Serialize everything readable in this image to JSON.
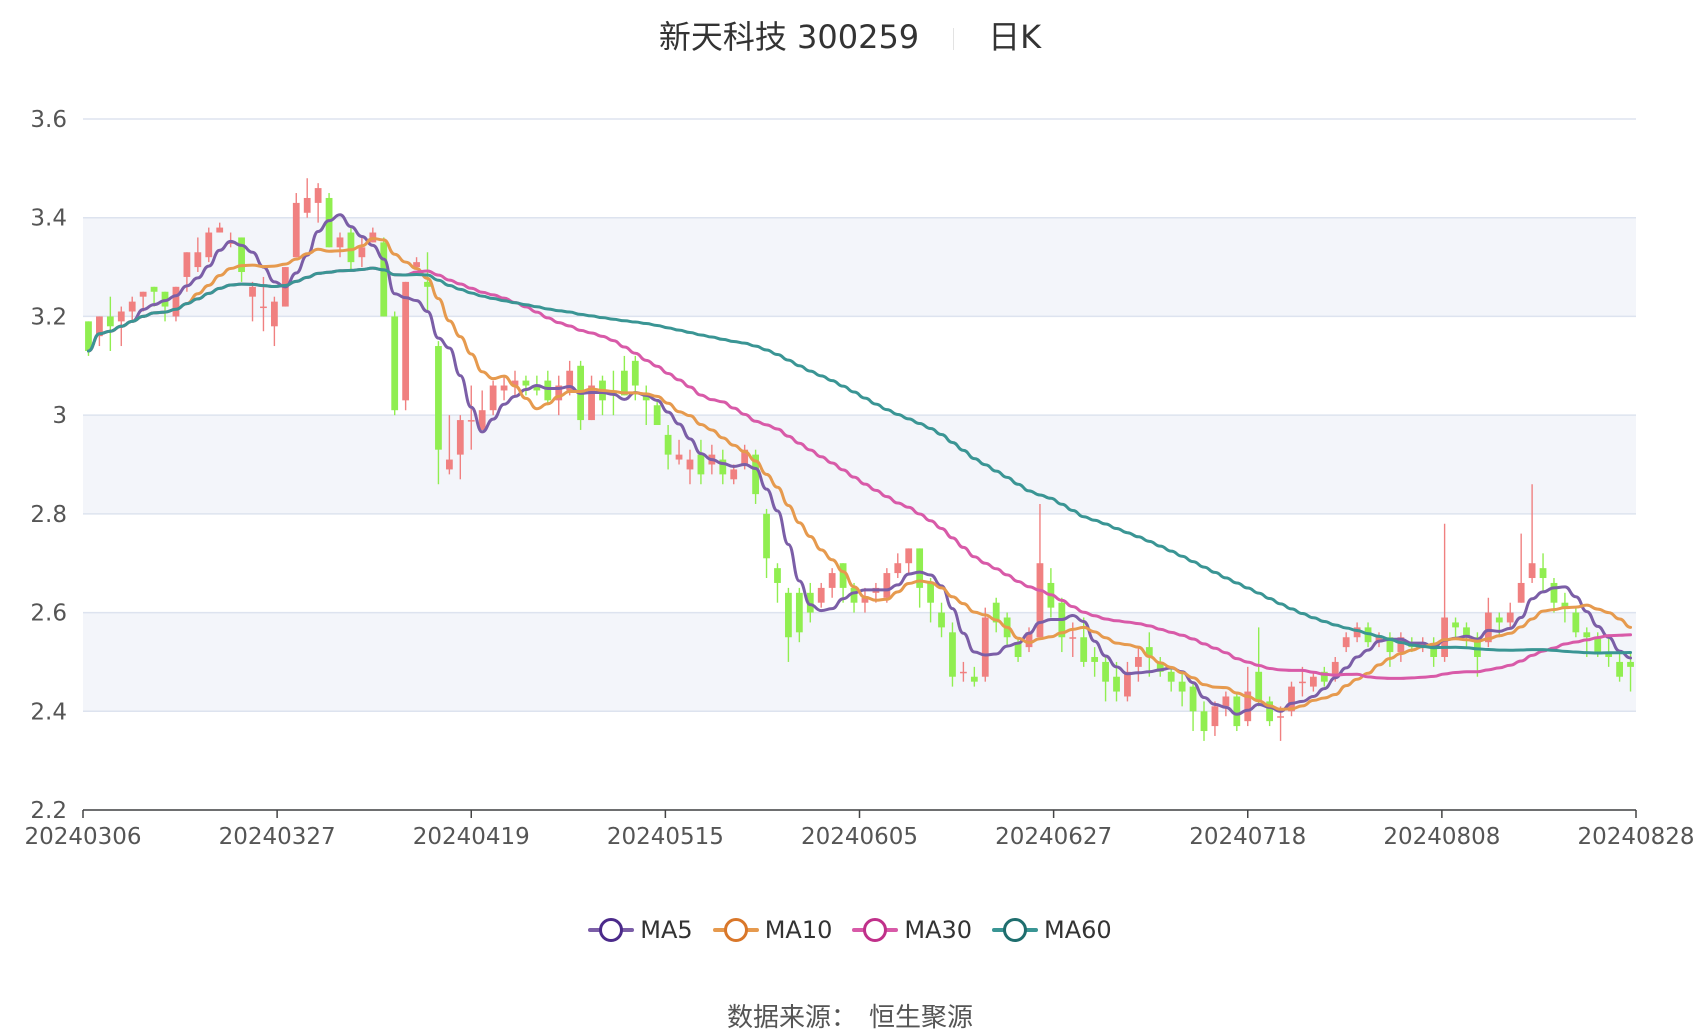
{
  "title": {
    "name": "新天科技 300259",
    "period": "日K"
  },
  "source": {
    "label": "数据来源：",
    "value": "恒生聚源"
  },
  "colors": {
    "up": "#f08080",
    "down": "#90ee50",
    "grid": "#dde3ef",
    "band": "#f3f5fa",
    "axis": "#555555"
  },
  "chart_data": {
    "type": "candlestick",
    "x_ticks": [
      "20240306",
      "20240327",
      "20240419",
      "20240515",
      "20240605",
      "20240627",
      "20240718",
      "20240808",
      "20240828"
    ],
    "ylim": [
      2.2,
      3.6
    ],
    "y_ticks": [
      "2.2",
      "2.4",
      "2.6",
      "2.8",
      "3",
      "3.2",
      "3.4",
      "3.6"
    ],
    "grid": true,
    "legend_position": "bottom",
    "series": [
      {
        "name": "MA5",
        "color": "#7b5ea7",
        "marker_color": "#4b2a8a"
      },
      {
        "name": "MA10",
        "color": "#e69a4e",
        "marker_color": "#d9772a"
      },
      {
        "name": "MA30",
        "color": "#d85aa8",
        "marker_color": "#c0308a"
      },
      {
        "name": "MA60",
        "color": "#3a9594",
        "marker_color": "#1f6e6e"
      }
    ],
    "candles": [
      [
        3.19,
        3.13,
        3.12,
        3.19
      ],
      [
        3.16,
        3.2,
        3.14,
        3.2
      ],
      [
        3.2,
        3.18,
        3.13,
        3.24
      ],
      [
        3.19,
        3.21,
        3.14,
        3.22
      ],
      [
        3.21,
        3.23,
        3.19,
        3.24
      ],
      [
        3.24,
        3.25,
        3.21,
        3.25
      ],
      [
        3.26,
        3.25,
        3.22,
        3.26
      ],
      [
        3.25,
        3.22,
        3.19,
        3.25
      ],
      [
        3.2,
        3.26,
        3.19,
        3.26
      ],
      [
        3.28,
        3.33,
        3.25,
        3.33
      ],
      [
        3.3,
        3.33,
        3.29,
        3.36
      ],
      [
        3.32,
        3.37,
        3.31,
        3.38
      ],
      [
        3.37,
        3.38,
        3.37,
        3.39
      ],
      [
        3.35,
        3.35,
        3.34,
        3.37
      ],
      [
        3.36,
        3.29,
        3.27,
        3.36
      ],
      [
        3.24,
        3.26,
        3.19,
        3.27
      ],
      [
        3.22,
        3.22,
        3.17,
        3.28
      ],
      [
        3.18,
        3.23,
        3.14,
        3.24
      ],
      [
        3.22,
        3.3,
        3.22,
        3.3
      ],
      [
        3.32,
        3.43,
        3.32,
        3.45
      ],
      [
        3.41,
        3.44,
        3.4,
        3.48
      ],
      [
        3.43,
        3.46,
        3.39,
        3.47
      ],
      [
        3.44,
        3.34,
        3.34,
        3.45
      ],
      [
        3.34,
        3.36,
        3.32,
        3.37
      ],
      [
        3.37,
        3.31,
        3.29,
        3.38
      ],
      [
        3.32,
        3.34,
        3.3,
        3.36
      ],
      [
        3.35,
        3.37,
        3.35,
        3.38
      ],
      [
        3.35,
        3.2,
        3.2,
        3.36
      ],
      [
        3.2,
        3.01,
        3.0,
        3.21
      ],
      [
        3.03,
        3.27,
        3.01,
        3.27
      ],
      [
        3.3,
        3.31,
        3.3,
        3.32
      ],
      [
        3.27,
        3.26,
        3.21,
        3.33
      ],
      [
        3.14,
        2.93,
        2.86,
        3.15
      ],
      [
        2.89,
        2.91,
        2.88,
        3.0
      ],
      [
        2.92,
        2.99,
        2.87,
        3.0
      ],
      [
        2.99,
        2.99,
        2.93,
        3.06
      ],
      [
        2.97,
        3.01,
        2.97,
        3.05
      ],
      [
        3.01,
        3.06,
        3.0,
        3.07
      ],
      [
        3.05,
        3.06,
        3.03,
        3.08
      ],
      [
        3.06,
        3.07,
        3.04,
        3.09
      ],
      [
        3.07,
        3.06,
        3.04,
        3.08
      ],
      [
        3.06,
        3.05,
        3.04,
        3.08
      ],
      [
        3.07,
        3.03,
        3.02,
        3.09
      ],
      [
        3.03,
        3.06,
        3.0,
        3.08
      ],
      [
        3.05,
        3.09,
        3.04,
        3.11
      ],
      [
        3.1,
        2.99,
        2.97,
        3.11
      ],
      [
        2.99,
        3.06,
        2.99,
        3.08
      ],
      [
        3.07,
        3.03,
        3.0,
        3.08
      ],
      [
        3.05,
        3.04,
        3.0,
        3.09
      ],
      [
        3.09,
        3.04,
        3.04,
        3.12
      ],
      [
        3.11,
        3.06,
        3.03,
        3.12
      ],
      [
        3.04,
        3.03,
        2.98,
        3.06
      ],
      [
        3.02,
        2.98,
        2.98,
        3.03
      ],
      [
        2.96,
        2.92,
        2.89,
        2.98
      ],
      [
        2.91,
        2.92,
        2.9,
        2.95
      ],
      [
        2.89,
        2.91,
        2.86,
        2.93
      ],
      [
        2.92,
        2.88,
        2.86,
        2.95
      ],
      [
        2.9,
        2.92,
        2.88,
        2.94
      ],
      [
        2.91,
        2.88,
        2.86,
        2.93
      ],
      [
        2.87,
        2.89,
        2.86,
        2.9
      ],
      [
        2.9,
        2.93,
        2.89,
        2.94
      ],
      [
        2.92,
        2.84,
        2.82,
        2.93
      ],
      [
        2.8,
        2.71,
        2.67,
        2.81
      ],
      [
        2.69,
        2.66,
        2.62,
        2.7
      ],
      [
        2.64,
        2.55,
        2.5,
        2.65
      ],
      [
        2.64,
        2.56,
        2.54,
        2.65
      ],
      [
        2.64,
        2.6,
        2.58,
        2.66
      ],
      [
        2.62,
        2.65,
        2.61,
        2.66
      ],
      [
        2.65,
        2.68,
        2.63,
        2.69
      ],
      [
        2.7,
        2.65,
        2.62,
        2.7
      ],
      [
        2.65,
        2.62,
        2.6,
        2.66
      ],
      [
        2.62,
        2.63,
        2.6,
        2.65
      ],
      [
        2.64,
        2.65,
        2.62,
        2.66
      ],
      [
        2.63,
        2.68,
        2.62,
        2.69
      ],
      [
        2.68,
        2.7,
        2.67,
        2.72
      ],
      [
        2.7,
        2.73,
        2.68,
        2.73
      ],
      [
        2.73,
        2.65,
        2.61,
        2.73
      ],
      [
        2.66,
        2.62,
        2.58,
        2.67
      ],
      [
        2.6,
        2.57,
        2.55,
        2.62
      ],
      [
        2.56,
        2.47,
        2.45,
        2.58
      ],
      [
        2.48,
        2.48,
        2.46,
        2.5
      ],
      [
        2.47,
        2.46,
        2.45,
        2.49
      ],
      [
        2.47,
        2.59,
        2.46,
        2.61
      ],
      [
        2.62,
        2.58,
        2.56,
        2.63
      ],
      [
        2.59,
        2.55,
        2.53,
        2.6
      ],
      [
        2.54,
        2.51,
        2.5,
        2.55
      ],
      [
        2.53,
        2.56,
        2.52,
        2.57
      ],
      [
        2.55,
        2.7,
        2.55,
        2.82
      ],
      [
        2.66,
        2.61,
        2.59,
        2.69
      ],
      [
        2.62,
        2.55,
        2.52,
        2.63
      ],
      [
        2.55,
        2.55,
        2.51,
        2.58
      ],
      [
        2.55,
        2.5,
        2.49,
        2.59
      ],
      [
        2.51,
        2.5,
        2.47,
        2.53
      ],
      [
        2.5,
        2.46,
        2.42,
        2.51
      ],
      [
        2.47,
        2.44,
        2.42,
        2.5
      ],
      [
        2.43,
        2.48,
        2.42,
        2.5
      ],
      [
        2.49,
        2.51,
        2.46,
        2.53
      ],
      [
        2.53,
        2.51,
        2.47,
        2.56
      ],
      [
        2.5,
        2.48,
        2.47,
        2.51
      ],
      [
        2.48,
        2.46,
        2.44,
        2.49
      ],
      [
        2.46,
        2.44,
        2.41,
        2.48
      ],
      [
        2.45,
        2.4,
        2.36,
        2.46
      ],
      [
        2.4,
        2.36,
        2.34,
        2.42
      ],
      [
        2.37,
        2.41,
        2.35,
        2.42
      ],
      [
        2.41,
        2.43,
        2.39,
        2.44
      ],
      [
        2.43,
        2.37,
        2.36,
        2.44
      ],
      [
        2.38,
        2.44,
        2.37,
        2.49
      ],
      [
        2.48,
        2.42,
        2.41,
        2.57
      ],
      [
        2.42,
        2.38,
        2.37,
        2.43
      ],
      [
        2.39,
        2.39,
        2.34,
        2.41
      ],
      [
        2.4,
        2.45,
        2.39,
        2.46
      ],
      [
        2.46,
        2.46,
        2.43,
        2.49
      ],
      [
        2.45,
        2.47,
        2.44,
        2.48
      ],
      [
        2.48,
        2.46,
        2.45,
        2.49
      ],
      [
        2.47,
        2.5,
        2.46,
        2.51
      ],
      [
        2.53,
        2.55,
        2.52,
        2.56
      ],
      [
        2.55,
        2.57,
        2.54,
        2.58
      ],
      [
        2.57,
        2.54,
        2.53,
        2.58
      ],
      [
        2.54,
        2.55,
        2.53,
        2.56
      ],
      [
        2.55,
        2.52,
        2.49,
        2.56
      ],
      [
        2.52,
        2.55,
        2.5,
        2.56
      ],
      [
        2.54,
        2.53,
        2.52,
        2.55
      ],
      [
        2.53,
        2.54,
        2.52,
        2.55
      ],
      [
        2.53,
        2.51,
        2.49,
        2.55
      ],
      [
        2.51,
        2.59,
        2.5,
        2.78
      ],
      [
        2.58,
        2.57,
        2.55,
        2.59
      ],
      [
        2.57,
        2.55,
        2.53,
        2.58
      ],
      [
        2.55,
        2.51,
        2.47,
        2.56
      ],
      [
        2.54,
        2.6,
        2.53,
        2.63
      ],
      [
        2.59,
        2.58,
        2.55,
        2.6
      ],
      [
        2.58,
        2.6,
        2.57,
        2.62
      ],
      [
        2.62,
        2.66,
        2.62,
        2.76
      ],
      [
        2.67,
        2.7,
        2.66,
        2.86
      ],
      [
        2.69,
        2.67,
        2.64,
        2.72
      ],
      [
        2.66,
        2.62,
        2.6,
        2.67
      ],
      [
        2.62,
        2.61,
        2.58,
        2.64
      ],
      [
        2.6,
        2.56,
        2.55,
        2.61
      ],
      [
        2.56,
        2.55,
        2.51,
        2.57
      ],
      [
        2.55,
        2.52,
        2.51,
        2.56
      ],
      [
        2.52,
        2.51,
        2.49,
        2.55
      ],
      [
        2.5,
        2.47,
        2.46,
        2.52
      ],
      [
        2.5,
        2.49,
        2.44,
        2.52
      ]
    ]
  }
}
